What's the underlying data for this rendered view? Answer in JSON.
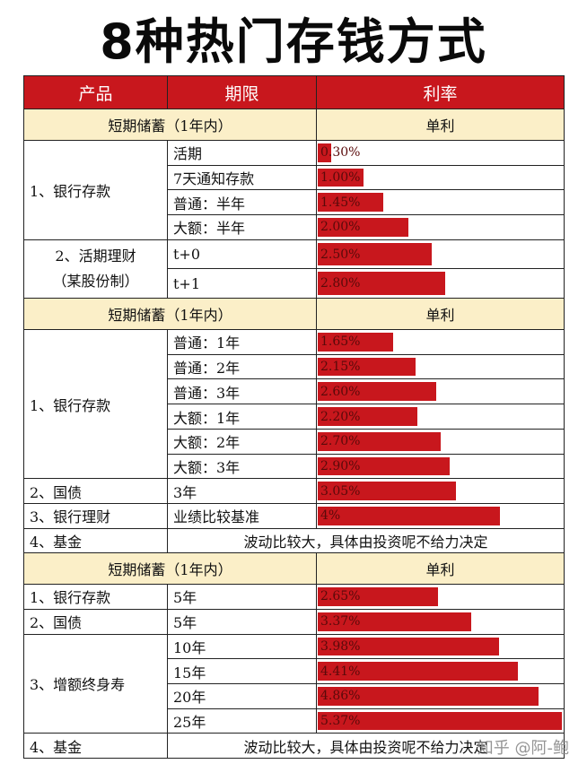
{
  "title": "8种热门存钱方式",
  "header": {
    "product": "产品",
    "period": "期限",
    "rate": "利率"
  },
  "scale_max_percent": 5.37,
  "sections": [
    {
      "heading": "短期储蓄（1年内）",
      "rate_type": "单利",
      "groups": [
        {
          "product": "1、银行存款",
          "rows": [
            {
              "period": "活期",
              "rate": "0.30%",
              "value": 0.3
            },
            {
              "period": "7天通知存款",
              "rate": "1.00%",
              "value": 1.0
            },
            {
              "period": "普通：半年",
              "rate": "1.45%",
              "value": 1.45
            },
            {
              "period": "大额：半年",
              "rate": "2.00%",
              "value": 2.0
            }
          ]
        },
        {
          "product_lines": [
            "2、活期理财",
            "（某股份制）"
          ],
          "rows": [
            {
              "period": "t+0",
              "rate": "2.50%",
              "value": 2.5
            },
            {
              "period": "t+1",
              "rate": "2.80%",
              "value": 2.8
            }
          ]
        }
      ]
    },
    {
      "heading": "短期储蓄（1年内）",
      "rate_type": "单利",
      "groups": [
        {
          "product": "1、银行存款",
          "rows": [
            {
              "period": "普通：1年",
              "rate": "1.65%",
              "value": 1.65
            },
            {
              "period": "普通：2年",
              "rate": "2.15%",
              "value": 2.15
            },
            {
              "period": "普通：3年",
              "rate": "2.60%",
              "value": 2.6
            },
            {
              "period": "大额：1年",
              "rate": "2.20%",
              "value": 2.2
            },
            {
              "period": "大额：2年",
              "rate": "2.70%",
              "value": 2.7
            },
            {
              "period": "大额：3年",
              "rate": "2.90%",
              "value": 2.9
            }
          ]
        },
        {
          "product": "2、国债",
          "rows": [
            {
              "period": "3年",
              "rate": "3.05%",
              "value": 3.05
            }
          ]
        },
        {
          "product": "3、银行理财",
          "rows": [
            {
              "period": "业绩比较基准",
              "rate": "4%",
              "value": 4.0
            }
          ]
        },
        {
          "product": "4、基金",
          "note": "波动比较大，具体由投资呢不给力决定"
        }
      ]
    },
    {
      "heading": "短期储蓄（1年内）",
      "rate_type": "单利",
      "groups": [
        {
          "product": "1、银行存款",
          "rows": [
            {
              "period": "5年",
              "rate": "2.65%",
              "value": 2.65
            }
          ]
        },
        {
          "product": "2、国债",
          "rows": [
            {
              "period": "5年",
              "rate": "3.37%",
              "value": 3.37
            }
          ]
        },
        {
          "product": "3、增额终身寿",
          "rows": [
            {
              "period": "10年",
              "rate": "3.98%",
              "value": 3.98
            },
            {
              "period": "15年",
              "rate": "4.41%",
              "value": 4.41
            },
            {
              "period": "20年",
              "rate": "4.86%",
              "value": 4.86
            },
            {
              "period": "25年",
              "rate": "5.37%",
              "value": 5.37
            }
          ]
        },
        {
          "product": "4、基金",
          "note": "波动比较大，具体由投资呢不给力决定"
        }
      ]
    }
  ],
  "watermark": "知乎 @阿-鲍",
  "colors": {
    "red": "#c8171d",
    "section_bg": "#fbefc8"
  }
}
